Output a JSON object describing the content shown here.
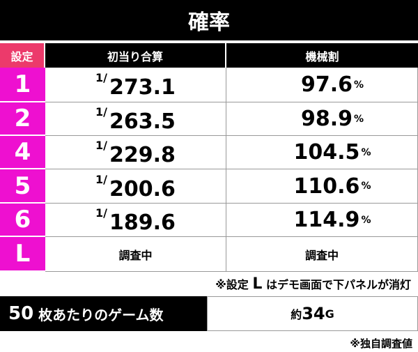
{
  "title": "確率",
  "table": {
    "header": [
      "設定",
      "初当り合算",
      "機械割"
    ],
    "rows": [
      {
        "setting": "1",
        "prob_prefix": "1/",
        "prob": "273.1",
        "payout": "97.6",
        "unit": "%"
      },
      {
        "setting": "2",
        "prob_prefix": "1/",
        "prob": "263.5",
        "payout": "98.9",
        "unit": "%"
      },
      {
        "setting": "4",
        "prob_prefix": "1/",
        "prob": "229.8",
        "payout": "104.5",
        "unit": "%"
      },
      {
        "setting": "5",
        "prob_prefix": "1/",
        "prob": "200.6",
        "payout": "110.6",
        "unit": "%"
      },
      {
        "setting": "6",
        "prob_prefix": "1/",
        "prob": "189.6",
        "payout": "114.9",
        "unit": "%"
      },
      {
        "setting": "L",
        "prob_text": "調査中",
        "payout_text": "調査中"
      }
    ]
  },
  "note": {
    "prefix": "※設定 ",
    "key": "L",
    "suffix": " はデモ画面で下パネルが消灯"
  },
  "games": {
    "count": "50",
    "label": " 枚あたりのゲーム数",
    "approx": "約",
    "value": "34",
    "unit": "G"
  },
  "footnote": "※独自調査値"
}
